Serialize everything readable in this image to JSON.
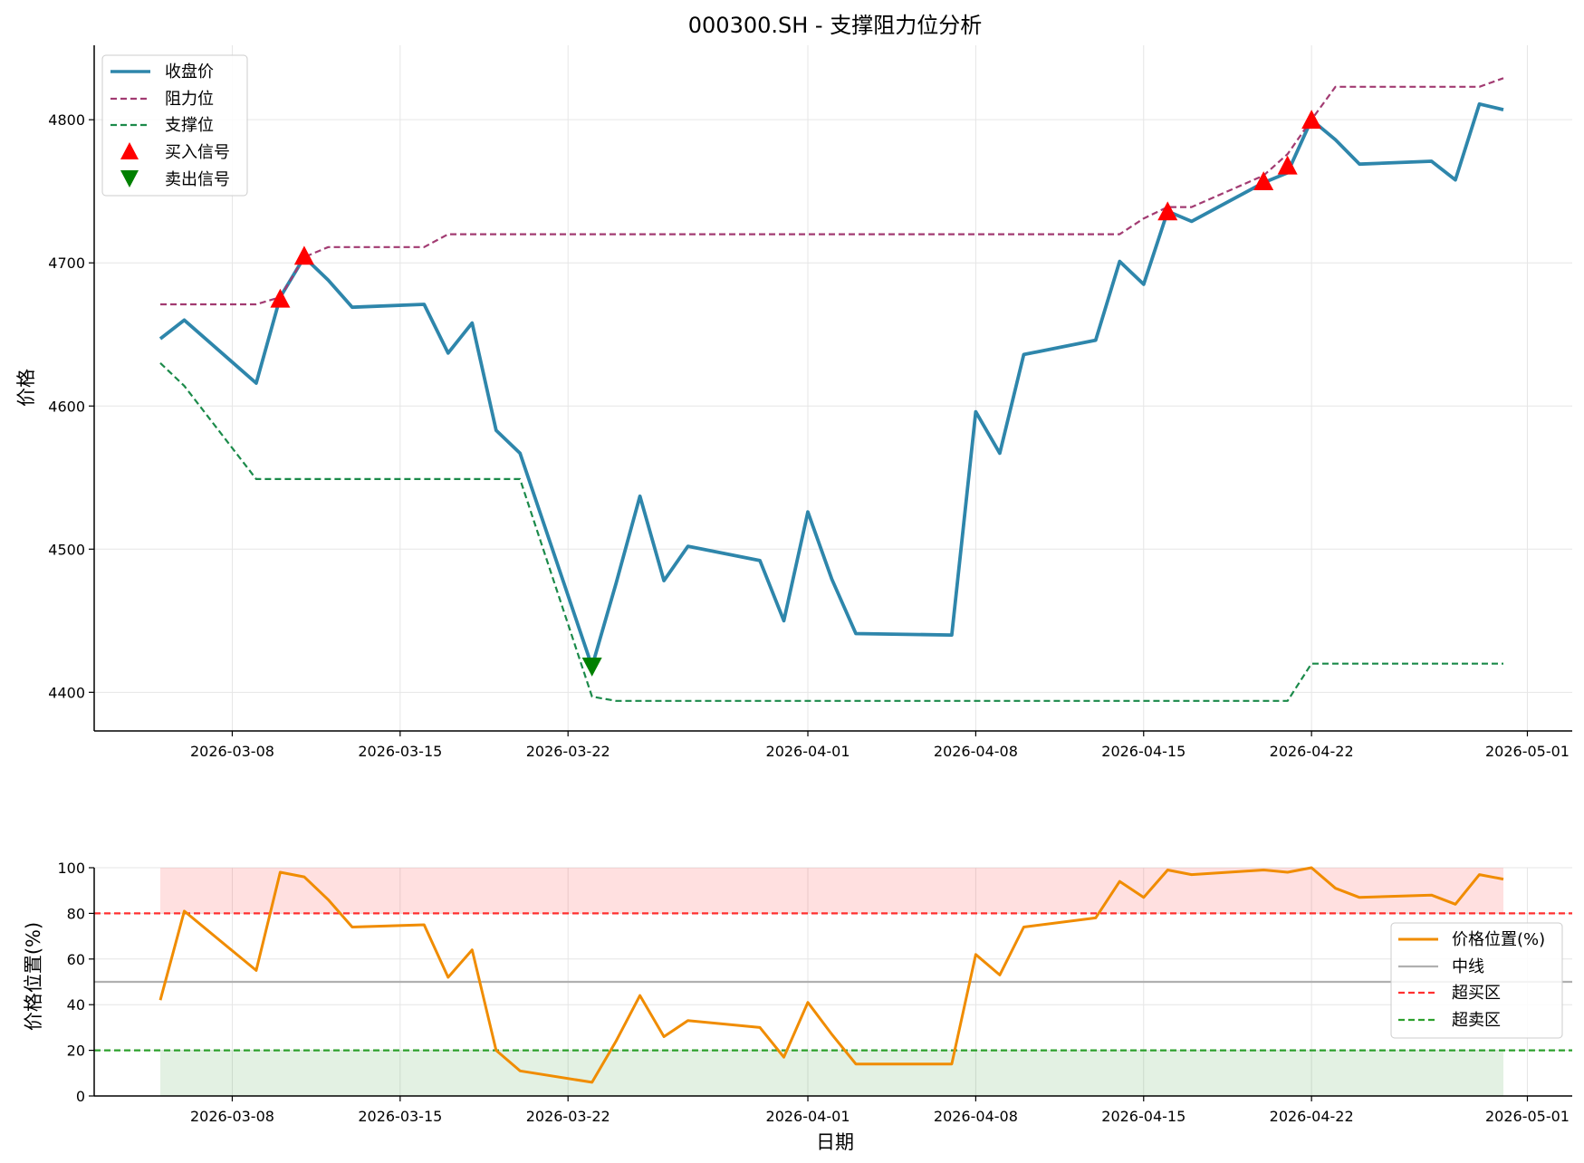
{
  "chart_data": [
    {
      "type": "line",
      "title": "000300.SH - 支撑阻力位分析",
      "xlabel": "",
      "ylabel": "价格",
      "ylim": [
        4373,
        4852
      ],
      "yticks": [
        4400,
        4500,
        4600,
        4700,
        4800
      ],
      "xticks": [
        "2026-03-08",
        "2026-03-15",
        "2026-03-22",
        "2026-04-01",
        "2026-04-08",
        "2026-04-15",
        "2026-04-22",
        "2026-05-01"
      ],
      "grid": true,
      "legend_position": "top-left",
      "series": [
        {
          "name": "收盘价",
          "color": "#2e86ab",
          "style": "solid",
          "points": [
            [
              "2026-03-05",
              4647
            ],
            [
              "2026-03-06",
              4660
            ],
            [
              "2026-03-09",
              4616
            ],
            [
              "2026-03-10",
              4676
            ],
            [
              "2026-03-11",
              4704
            ],
            [
              "2026-03-12",
              4688
            ],
            [
              "2026-03-13",
              4669
            ],
            [
              "2026-03-16",
              4671
            ],
            [
              "2026-03-17",
              4637
            ],
            [
              "2026-03-18",
              4658
            ],
            [
              "2026-03-19",
              4583
            ],
            [
              "2026-03-20",
              4567
            ],
            [
              "2026-03-23",
              4418
            ],
            [
              "2026-03-24",
              4476
            ],
            [
              "2026-03-25",
              4537
            ],
            [
              "2026-03-26",
              4478
            ],
            [
              "2026-03-27",
              4502
            ],
            [
              "2026-03-30",
              4492
            ],
            [
              "2026-03-31",
              4450
            ],
            [
              "2026-04-01",
              4526
            ],
            [
              "2026-04-02",
              4479
            ],
            [
              "2026-04-03",
              4441
            ],
            [
              "2026-04-07",
              4440
            ],
            [
              "2026-04-08",
              4596
            ],
            [
              "2026-04-09",
              4567
            ],
            [
              "2026-04-10",
              4636
            ],
            [
              "2026-04-13",
              4646
            ],
            [
              "2026-04-14",
              4701
            ],
            [
              "2026-04-15",
              4685
            ],
            [
              "2026-04-16",
              4736
            ],
            [
              "2026-04-17",
              4729
            ],
            [
              "2026-04-20",
              4756
            ],
            [
              "2026-04-21",
              4763
            ],
            [
              "2026-04-22",
              4800
            ],
            [
              "2026-04-23",
              4786
            ],
            [
              "2026-04-24",
              4769
            ],
            [
              "2026-04-27",
              4771
            ],
            [
              "2026-04-28",
              4758
            ],
            [
              "2026-04-29",
              4811
            ],
            [
              "2026-04-30",
              4807
            ]
          ]
        },
        {
          "name": "阻力位",
          "color": "#a23b72",
          "style": "dashed",
          "points": [
            [
              "2026-03-05",
              4671
            ],
            [
              "2026-03-06",
              4671
            ],
            [
              "2026-03-09",
              4671
            ],
            [
              "2026-03-10",
              4676
            ],
            [
              "2026-03-11",
              4704
            ],
            [
              "2026-03-12",
              4711
            ],
            [
              "2026-03-13",
              4711
            ],
            [
              "2026-03-16",
              4711
            ],
            [
              "2026-03-17",
              4720
            ],
            [
              "2026-03-18",
              4720
            ],
            [
              "2026-03-19",
              4720
            ],
            [
              "2026-03-20",
              4720
            ],
            [
              "2026-03-23",
              4720
            ],
            [
              "2026-03-24",
              4720
            ],
            [
              "2026-03-25",
              4720
            ],
            [
              "2026-03-26",
              4720
            ],
            [
              "2026-03-27",
              4720
            ],
            [
              "2026-03-30",
              4720
            ],
            [
              "2026-03-31",
              4720
            ],
            [
              "2026-04-01",
              4720
            ],
            [
              "2026-04-02",
              4720
            ],
            [
              "2026-04-03",
              4720
            ],
            [
              "2026-04-07",
              4720
            ],
            [
              "2026-04-08",
              4720
            ],
            [
              "2026-04-09",
              4720
            ],
            [
              "2026-04-10",
              4720
            ],
            [
              "2026-04-13",
              4720
            ],
            [
              "2026-04-14",
              4720
            ],
            [
              "2026-04-15",
              4731
            ],
            [
              "2026-04-16",
              4739
            ],
            [
              "2026-04-17",
              4739
            ],
            [
              "2026-04-20",
              4761
            ],
            [
              "2026-04-21",
              4776
            ],
            [
              "2026-04-22",
              4800
            ],
            [
              "2026-04-23",
              4823
            ],
            [
              "2026-04-24",
              4823
            ],
            [
              "2026-04-27",
              4823
            ],
            [
              "2026-04-28",
              4823
            ],
            [
              "2026-04-29",
              4823
            ],
            [
              "2026-04-30",
              4829
            ]
          ]
        },
        {
          "name": "支撑位",
          "color": "#1b8a4a",
          "style": "dashed",
          "points": [
            [
              "2026-03-05",
              4630
            ],
            [
              "2026-03-06",
              4614
            ],
            [
              "2026-03-09",
              4549
            ],
            [
              "2026-03-10",
              4549
            ],
            [
              "2026-03-11",
              4549
            ],
            [
              "2026-03-12",
              4549
            ],
            [
              "2026-03-13",
              4549
            ],
            [
              "2026-03-16",
              4549
            ],
            [
              "2026-03-17",
              4549
            ],
            [
              "2026-03-18",
              4549
            ],
            [
              "2026-03-19",
              4549
            ],
            [
              "2026-03-20",
              4549
            ],
            [
              "2026-03-23",
              4397
            ],
            [
              "2026-03-24",
              4394
            ],
            [
              "2026-03-25",
              4394
            ],
            [
              "2026-03-26",
              4394
            ],
            [
              "2026-03-27",
              4394
            ],
            [
              "2026-03-30",
              4394
            ],
            [
              "2026-03-31",
              4394
            ],
            [
              "2026-04-01",
              4394
            ],
            [
              "2026-04-02",
              4394
            ],
            [
              "2026-04-03",
              4394
            ],
            [
              "2026-04-07",
              4394
            ],
            [
              "2026-04-08",
              4394
            ],
            [
              "2026-04-09",
              4394
            ],
            [
              "2026-04-10",
              4394
            ],
            [
              "2026-04-13",
              4394
            ],
            [
              "2026-04-14",
              4394
            ],
            [
              "2026-04-15",
              4394
            ],
            [
              "2026-04-16",
              4394
            ],
            [
              "2026-04-17",
              4394
            ],
            [
              "2026-04-20",
              4394
            ],
            [
              "2026-04-21",
              4394
            ],
            [
              "2026-04-22",
              4420
            ],
            [
              "2026-04-23",
              4420
            ],
            [
              "2026-04-24",
              4420
            ],
            [
              "2026-04-27",
              4420
            ],
            [
              "2026-04-28",
              4420
            ],
            [
              "2026-04-29",
              4420
            ],
            [
              "2026-04-30",
              4420
            ]
          ]
        }
      ],
      "markers": [
        {
          "name": "买入信号",
          "color": "#ff0000",
          "shape": "triangle-up",
          "points": [
            [
              "2026-03-10",
              4675
            ],
            [
              "2026-03-11",
              4705
            ],
            [
              "2026-04-16",
              4736
            ],
            [
              "2026-04-20",
              4757
            ],
            [
              "2026-04-21",
              4768
            ],
            [
              "2026-04-22",
              4800
            ]
          ]
        },
        {
          "name": "卖出信号",
          "color": "#008000",
          "shape": "triangle-down",
          "points": [
            [
              "2026-03-23",
              4418
            ]
          ]
        }
      ]
    },
    {
      "type": "line",
      "title": "",
      "xlabel": "日期",
      "ylabel": "价格位置(%)",
      "ylim": [
        0,
        100
      ],
      "yticks": [
        0,
        20,
        40,
        60,
        80,
        100
      ],
      "xticks": [
        "2026-03-08",
        "2026-03-15",
        "2026-03-22",
        "2026-04-01",
        "2026-04-08",
        "2026-04-15",
        "2026-04-22",
        "2026-05-01"
      ],
      "grid": true,
      "legend_position": "right",
      "bands": [
        {
          "from": 80,
          "to": 100,
          "color": "#ff0000",
          "opacity": 0.12,
          "x_from": "2026-03-05",
          "x_to": "2026-04-30"
        },
        {
          "from": 0,
          "to": 20,
          "color": "#008000",
          "opacity": 0.11,
          "x_from": "2026-03-05",
          "x_to": "2026-04-30"
        }
      ],
      "hlines": [
        {
          "name": "中线",
          "y": 50,
          "color": "#b0b0b0",
          "style": "solid"
        },
        {
          "name": "超买区",
          "y": 80,
          "color": "#ff3030",
          "style": "dashed"
        },
        {
          "name": "超卖区",
          "y": 20,
          "color": "#2ca02c",
          "style": "dashed"
        }
      ],
      "series": [
        {
          "name": "价格位置(%)",
          "color": "#f08c00",
          "style": "solid",
          "points": [
            [
              "2026-03-05",
              42
            ],
            [
              "2026-03-06",
              81
            ],
            [
              "2026-03-09",
              55
            ],
            [
              "2026-03-10",
              98
            ],
            [
              "2026-03-11",
              96
            ],
            [
              "2026-03-12",
              86
            ],
            [
              "2026-03-13",
              74
            ],
            [
              "2026-03-16",
              75
            ],
            [
              "2026-03-17",
              52
            ],
            [
              "2026-03-18",
              64
            ],
            [
              "2026-03-19",
              20
            ],
            [
              "2026-03-20",
              11
            ],
            [
              "2026-03-23",
              6
            ],
            [
              "2026-03-24",
              24
            ],
            [
              "2026-03-25",
              44
            ],
            [
              "2026-03-26",
              26
            ],
            [
              "2026-03-27",
              33
            ],
            [
              "2026-03-30",
              30
            ],
            [
              "2026-03-31",
              17
            ],
            [
              "2026-04-01",
              41
            ],
            [
              "2026-04-02",
              27
            ],
            [
              "2026-04-03",
              14
            ],
            [
              "2026-04-07",
              14
            ],
            [
              "2026-04-08",
              62
            ],
            [
              "2026-04-09",
              53
            ],
            [
              "2026-04-10",
              74
            ],
            [
              "2026-04-13",
              78
            ],
            [
              "2026-04-14",
              94
            ],
            [
              "2026-04-15",
              87
            ],
            [
              "2026-04-16",
              99
            ],
            [
              "2026-04-17",
              97
            ],
            [
              "2026-04-20",
              99
            ],
            [
              "2026-04-21",
              98
            ],
            [
              "2026-04-22",
              100
            ],
            [
              "2026-04-23",
              91
            ],
            [
              "2026-04-24",
              87
            ],
            [
              "2026-04-27",
              88
            ],
            [
              "2026-04-28",
              84
            ],
            [
              "2026-04-29",
              97
            ],
            [
              "2026-04-30",
              95
            ]
          ]
        }
      ]
    }
  ]
}
